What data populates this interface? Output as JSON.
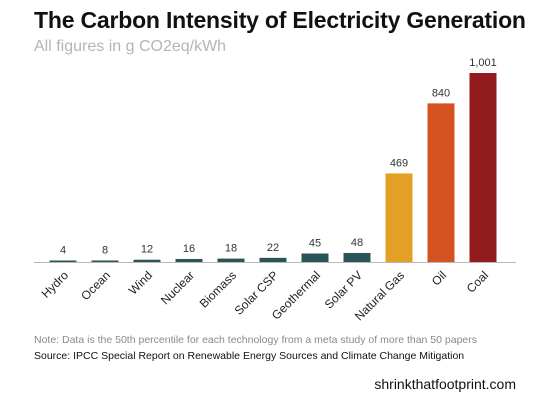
{
  "header": {
    "title": "The Carbon Intensity of Electricity Generation",
    "subtitle": "All figures in g CO2eq/kWh"
  },
  "footer": {
    "note": "Note: Data is the 50th percentile for each technology from a meta study of more than 50 papers",
    "source": "Source: IPCC Special Report on Renewable Energy Sources and Climate Change Mitigation",
    "website": "shrinkthatfootprint.com"
  },
  "chart_data": {
    "type": "bar",
    "title": "The Carbon Intensity of Electricity Generation",
    "subtitle": "All figures in g CO2eq/kWh",
    "xlabel": "",
    "ylabel": "",
    "ylim": [
      0,
      1001
    ],
    "grid": false,
    "categories": [
      "Hydro",
      "Ocean",
      "Wind",
      "Nuclear",
      "Biomass",
      "Solar CSP",
      "Geothermal",
      "Solar PV",
      "Natural Gas",
      "Oil",
      "Coal"
    ],
    "values": [
      4,
      8,
      12,
      16,
      18,
      22,
      45,
      48,
      469,
      840,
      1001
    ],
    "data_labels": [
      "4",
      "8",
      "12",
      "16",
      "18",
      "22",
      "45",
      "48",
      "469",
      "840",
      "1,001"
    ],
    "colors": [
      "#2b5458",
      "#2b5458",
      "#2b5458",
      "#2b5458",
      "#2b5458",
      "#2b5458",
      "#2b5458",
      "#2b5458",
      "#e3a024",
      "#d4521f",
      "#921b1d"
    ]
  }
}
